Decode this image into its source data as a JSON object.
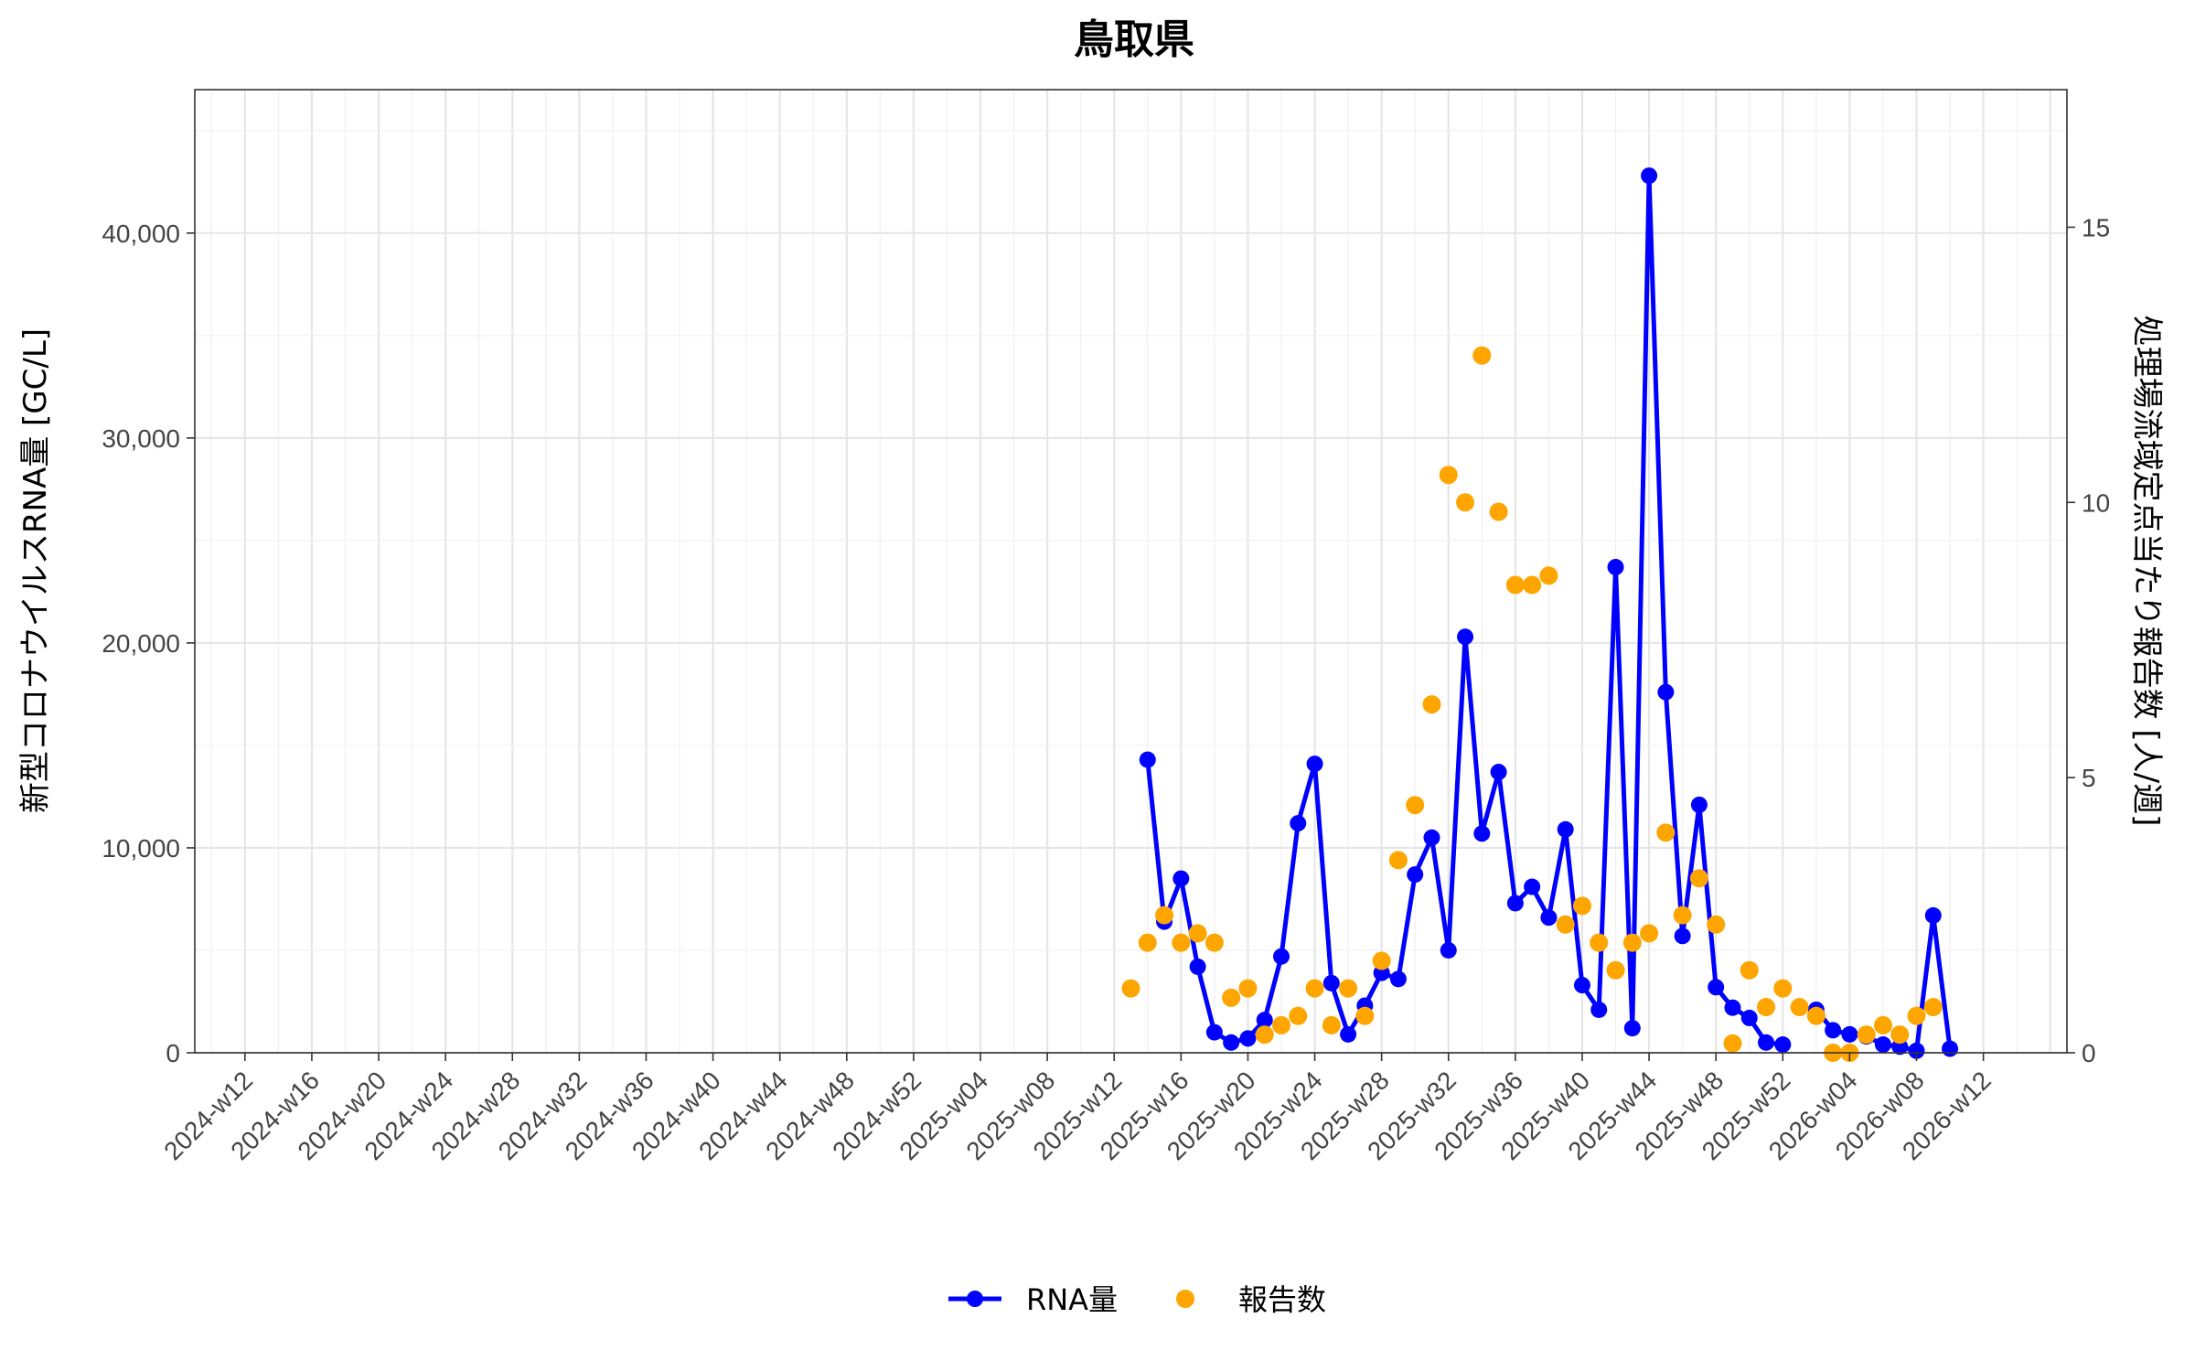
{
  "chart_data": {
    "type": "line",
    "title": "鳥取県",
    "ylabel_left": "新型コロナウイルスRNA量 [GC/L]",
    "ylabel_right": "処理場流域定点当たり報告数 [人/週]",
    "ylim_left": [
      0,
      47000
    ],
    "ylim_right": [
      0,
      17.5
    ],
    "y_ticks_left": [
      0,
      10000,
      20000,
      30000,
      40000
    ],
    "y_tick_labels_left": [
      "0",
      "10,000",
      "20,000",
      "30,000",
      "40,000"
    ],
    "y_ticks_right": [
      0,
      5,
      10,
      15
    ],
    "y_tick_labels_right": [
      "0",
      "5",
      "10",
      "15"
    ],
    "x_tick_labels": [
      "2024-w12",
      "2024-w16",
      "2024-w20",
      "2024-w24",
      "2024-w28",
      "2024-w32",
      "2024-w36",
      "2024-w40",
      "2024-w44",
      "2024-w48",
      "2024-w52",
      "2025-w04",
      "2025-w08",
      "2025-w12",
      "2025-w16",
      "2025-w20",
      "2025-w24",
      "2025-w28",
      "2025-w32",
      "2025-w36",
      "2025-w40",
      "2025-w44",
      "2025-w48",
      "2025-w52",
      "2026-w04",
      "2026-w08",
      "2026-w12"
    ],
    "x_range_index": [
      -3,
      109
    ],
    "grid": true,
    "legend_position": "bottom",
    "series": [
      {
        "name": "RNA量",
        "type": "line",
        "axis": "left",
        "color": "#0000ff",
        "points": [
          {
            "x": "2025-w14",
            "y": 14300
          },
          {
            "x": "2025-w15",
            "y": 6400
          },
          {
            "x": "2025-w16",
            "y": 8500
          },
          {
            "x": "2025-w17",
            "y": 4200
          },
          {
            "x": "2025-w18",
            "y": 1000
          },
          {
            "x": "2025-w19",
            "y": 500
          },
          {
            "x": "2025-w20",
            "y": 700
          },
          {
            "x": "2025-w21",
            "y": 1600
          },
          {
            "x": "2025-w22",
            "y": 4700
          },
          {
            "x": "2025-w23",
            "y": 11200
          },
          {
            "x": "2025-w24",
            "y": 14100
          },
          {
            "x": "2025-w25",
            "y": 3400
          },
          {
            "x": "2025-w26",
            "y": 900
          },
          {
            "x": "2025-w27",
            "y": 2300
          },
          {
            "x": "2025-w28",
            "y": 3900
          },
          {
            "x": "2025-w29",
            "y": 3600
          },
          {
            "x": "2025-w30",
            "y": 8700
          },
          {
            "x": "2025-w31",
            "y": 10500
          },
          {
            "x": "2025-w32",
            "y": 5000
          },
          {
            "x": "2025-w33",
            "y": 20300
          },
          {
            "x": "2025-w34",
            "y": 10700
          },
          {
            "x": "2025-w35",
            "y": 13700
          },
          {
            "x": "2025-w36",
            "y": 7300
          },
          {
            "x": "2025-w37",
            "y": 8100
          },
          {
            "x": "2025-w38",
            "y": 6600
          },
          {
            "x": "2025-w39",
            "y": 10900
          },
          {
            "x": "2025-w40",
            "y": 3300
          },
          {
            "x": "2025-w41",
            "y": 2100
          },
          {
            "x": "2025-w42",
            "y": 23700
          },
          {
            "x": "2025-w43",
            "y": 1200
          },
          {
            "x": "2025-w44",
            "y": 42800
          },
          {
            "x": "2025-w45",
            "y": 17600
          },
          {
            "x": "2025-w46",
            "y": 5700
          },
          {
            "x": "2025-w47",
            "y": 12100
          },
          {
            "x": "2025-w48",
            "y": 3200
          },
          {
            "x": "2025-w49",
            "y": 2200
          },
          {
            "x": "2025-w50",
            "y": 1700
          },
          {
            "x": "2025-w51",
            "y": 500
          },
          {
            "x": "2025-w52",
            "y": 400
          },
          {
            "x": "2026-w02",
            "y": 2100
          },
          {
            "x": "2026-w03",
            "y": 1100
          },
          {
            "x": "2026-w04",
            "y": 900
          },
          {
            "x": "2026-w05",
            "y": 800
          },
          {
            "x": "2026-w06",
            "y": 400
          },
          {
            "x": "2026-w07",
            "y": 300
          },
          {
            "x": "2026-w08",
            "y": 100
          },
          {
            "x": "2026-w09",
            "y": 6700
          },
          {
            "x": "2026-w10",
            "y": 200
          }
        ]
      },
      {
        "name": "報告数",
        "type": "scatter",
        "axis": "right",
        "color": "#ffa500",
        "points": [
          {
            "x": "2025-w13",
            "y": 1.17
          },
          {
            "x": "2025-w14",
            "y": 2.0
          },
          {
            "x": "2025-w15",
            "y": 2.5
          },
          {
            "x": "2025-w16",
            "y": 2.0
          },
          {
            "x": "2025-w17",
            "y": 2.17
          },
          {
            "x": "2025-w18",
            "y": 2.0
          },
          {
            "x": "2025-w19",
            "y": 1.0
          },
          {
            "x": "2025-w20",
            "y": 1.17
          },
          {
            "x": "2025-w21",
            "y": 0.33
          },
          {
            "x": "2025-w22",
            "y": 0.5
          },
          {
            "x": "2025-w23",
            "y": 0.67
          },
          {
            "x": "2025-w24",
            "y": 1.17
          },
          {
            "x": "2025-w25",
            "y": 0.5
          },
          {
            "x": "2025-w26",
            "y": 1.17
          },
          {
            "x": "2025-w27",
            "y": 0.67
          },
          {
            "x": "2025-w28",
            "y": 1.67
          },
          {
            "x": "2025-w29",
            "y": 3.5
          },
          {
            "x": "2025-w30",
            "y": 4.5
          },
          {
            "x": "2025-w31",
            "y": 6.33
          },
          {
            "x": "2025-w32",
            "y": 10.5
          },
          {
            "x": "2025-w33",
            "y": 10.0
          },
          {
            "x": "2025-w34",
            "y": 12.67
          },
          {
            "x": "2025-w35",
            "y": 9.83
          },
          {
            "x": "2025-w36",
            "y": 8.5
          },
          {
            "x": "2025-w37",
            "y": 8.5
          },
          {
            "x": "2025-w38",
            "y": 8.67
          },
          {
            "x": "2025-w39",
            "y": 2.33
          },
          {
            "x": "2025-w40",
            "y": 2.67
          },
          {
            "x": "2025-w41",
            "y": 2.0
          },
          {
            "x": "2025-w42",
            "y": 1.5
          },
          {
            "x": "2025-w43",
            "y": 2.0
          },
          {
            "x": "2025-w44",
            "y": 2.17
          },
          {
            "x": "2025-w45",
            "y": 4.0
          },
          {
            "x": "2025-w46",
            "y": 2.5
          },
          {
            "x": "2025-w47",
            "y": 3.17
          },
          {
            "x": "2025-w48",
            "y": 2.33
          },
          {
            "x": "2025-w49",
            "y": 0.17
          },
          {
            "x": "2025-w50",
            "y": 1.5
          },
          {
            "x": "2025-w51",
            "y": 0.83
          },
          {
            "x": "2025-w52",
            "y": 1.17
          },
          {
            "x": "2026-w01",
            "y": 0.83
          },
          {
            "x": "2026-w02",
            "y": 0.67
          },
          {
            "x": "2026-w03",
            "y": 0.0
          },
          {
            "x": "2026-w04",
            "y": 0.0
          },
          {
            "x": "2026-w05",
            "y": 0.33
          },
          {
            "x": "2026-w06",
            "y": 0.5
          },
          {
            "x": "2026-w07",
            "y": 0.33
          },
          {
            "x": "2026-w08",
            "y": 0.67
          },
          {
            "x": "2026-w09",
            "y": 0.83
          }
        ]
      }
    ]
  }
}
